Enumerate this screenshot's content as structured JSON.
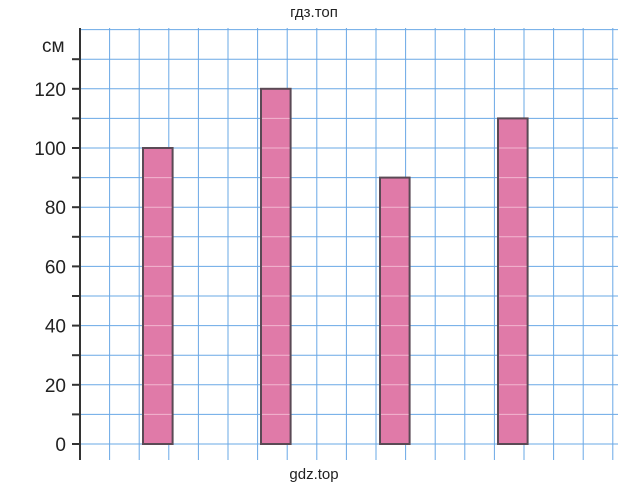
{
  "watermark_top": "гдз.топ",
  "watermark_bottom": "gdz.top",
  "colors": {
    "grid": "#6aa8e6",
    "bar_fill": "#e07aa8",
    "bar_stroke": "#5a4a55",
    "axis": "#333333"
  },
  "chart_data": {
    "type": "bar",
    "categories": [
      "",
      "",
      "",
      ""
    ],
    "values": [
      100,
      120,
      90,
      110
    ],
    "title": "",
    "xlabel": "",
    "ylabel": "см",
    "ylim": [
      0,
      130
    ],
    "yticks": [
      0,
      20,
      40,
      60,
      80,
      100,
      120
    ],
    "grid": true
  }
}
